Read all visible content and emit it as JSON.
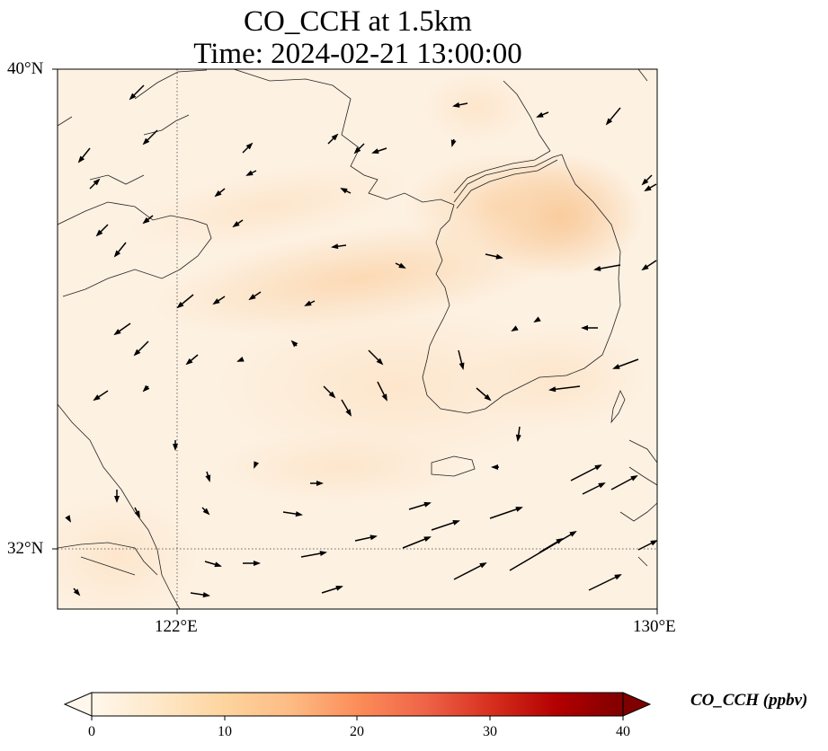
{
  "title": {
    "line1": "CO_CCH at 1.5km",
    "line2": "Time: 2024-02-21 13:00:00"
  },
  "map": {
    "lat_labels": [
      "40°N",
      "32°N"
    ],
    "lon_labels": [
      "122°E",
      "130°E"
    ],
    "extent": {
      "lon_min": 120,
      "lon_max": 130,
      "lat_min": 31,
      "lat_max": 40
    },
    "gridlines": {
      "lon": 122,
      "lat": 32,
      "style": "dotted"
    }
  },
  "colorbar": {
    "label": "CO_CCH (ppbv)",
    "ticks": [
      "0",
      "10",
      "20",
      "30",
      "40"
    ],
    "range": [
      0,
      40
    ],
    "colormap": "OrRd",
    "colors": [
      "#fff7ec",
      "#fee8c8",
      "#fdd49e",
      "#fdbb84",
      "#fc8d59",
      "#ef6548",
      "#d7301f",
      "#b30000",
      "#7f0000"
    ],
    "extend": "both"
  },
  "field": {
    "background_color": "#fdf1e2",
    "max_color": "#f9c38e",
    "plume_color": "#fbd9b2"
  }
}
